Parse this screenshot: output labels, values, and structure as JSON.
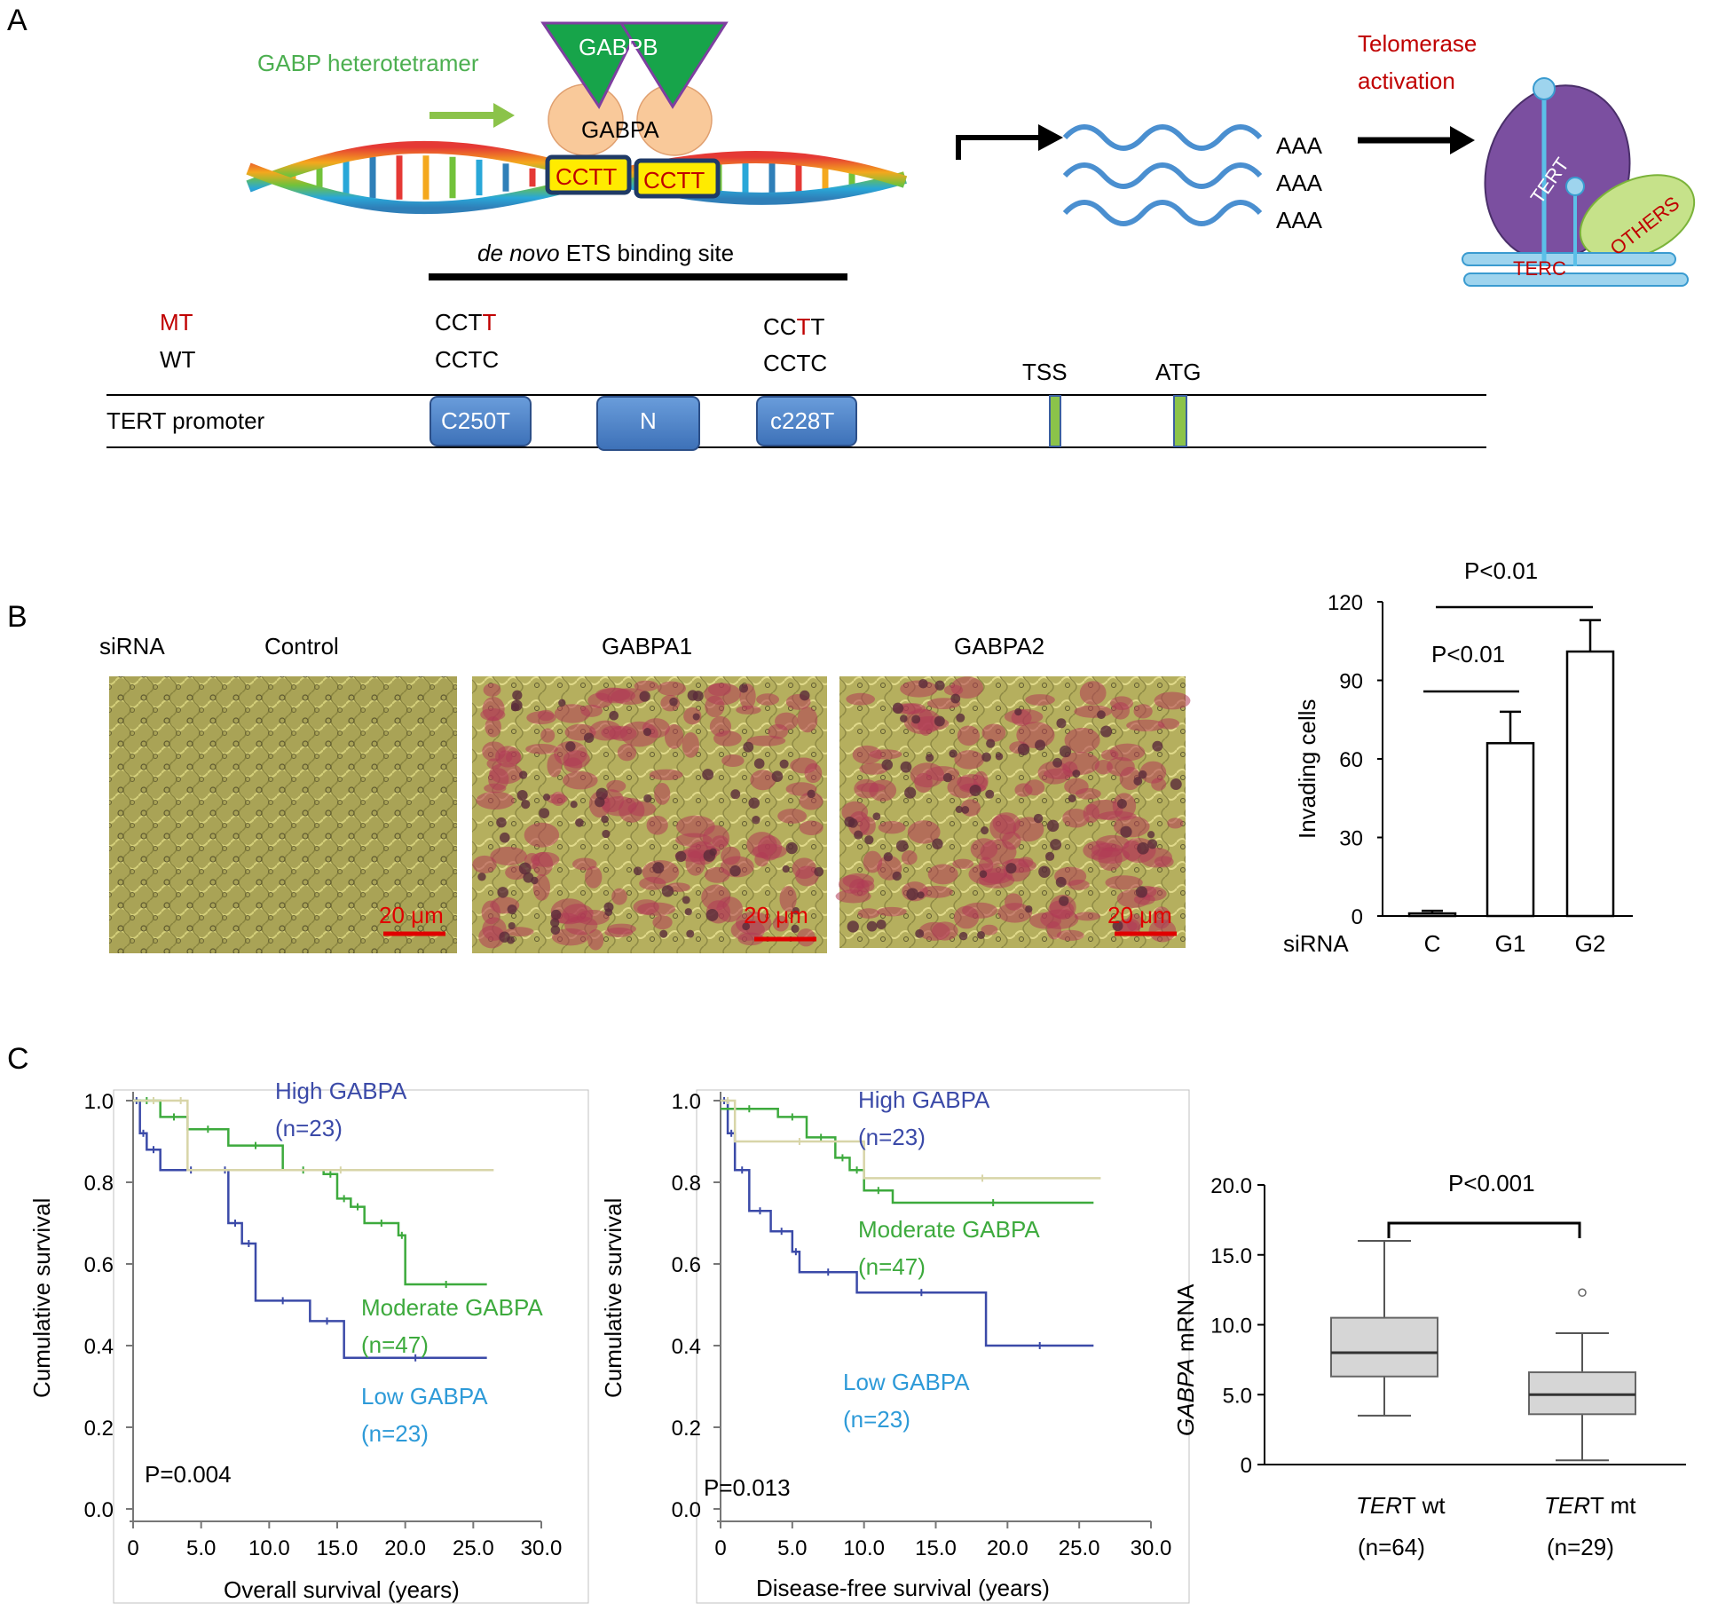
{
  "panels": {
    "a": "A",
    "b": "B",
    "c": "C"
  },
  "colors": {
    "red": "#c00000",
    "green": "#4caf50",
    "purple": "#7b4fa0",
    "blue_box": "#4a80c8",
    "dna_green": "#72c23a",
    "high": "#3b4aa8",
    "moderate": "#3daa3d",
    "low": "#2d9ad8",
    "low_line": "#d8d5a8"
  },
  "panel_a": {
    "heterotetramer": "GABP heterotetramer",
    "gabpb": "GABPB",
    "gabpa": "GABPA",
    "cctt_1": "CCTT",
    "cctt_2": "CCTT",
    "binding_site_italic": "de novo",
    "binding_site_rest": " ETS binding site",
    "polya": [
      "AAA",
      "AAA",
      "AAA"
    ],
    "telomerase_1": "Telomerase",
    "telomerase_2": "activation",
    "tert": "TERT",
    "others": "OTHERS",
    "terc": "TERC",
    "mt": "MT",
    "wt": "WT",
    "seq_250_mt_a": "CCT",
    "seq_250_mt_b": "T",
    "seq_250_wt": "CCTC",
    "seq_228_mt_a": "CC",
    "seq_228_mt_b": "T",
    "seq_228_mt_c": "T",
    "seq_228_wt": "CCTC",
    "tss": "TSS",
    "atg": "ATG",
    "promoter": "TERT promoter",
    "box_c250t": "C250T",
    "box_n": "N",
    "box_c228t": "c228T"
  },
  "panel_b": {
    "sirna": "siRNA",
    "control": "Control",
    "gabpa1": "GABPA1",
    "gabpa2": "GABPA2",
    "scalebar": "20 μm",
    "p1": "P<0.01",
    "p2": "P<0.01",
    "ylabel": "Invading cells",
    "xlabel": "siRNA"
  },
  "panel_c": {
    "os_ylabel": "Cumulative survival",
    "os_xlabel": "Overall survival (years)",
    "os_p": "P=0.004",
    "dfs_ylabel": "Cumulative survival",
    "dfs_xlabel": "Disease-free survival (years)",
    "dfs_p": "P=0.013",
    "high": "High GABPA",
    "high_n": "(n=23)",
    "moderate": "Moderate GABPA",
    "moderate_n": "(n=47)",
    "low": "Low GABPA",
    "low_n": "(n=23)",
    "box_ylabel_italic": "GABPA",
    "box_ylabel_rest": " mRNA",
    "box_p": "P<0.001",
    "wt_italic": "TER",
    "wt_rest": "T wt",
    "wt_n": "(n=64)",
    "mt_italic": "TER",
    "mt_rest": "T mt",
    "mt_n": "(n=29)"
  },
  "chart_data": [
    {
      "type": "bar",
      "categories": [
        "C",
        "G1",
        "G2"
      ],
      "values": [
        1,
        66,
        101
      ],
      "errors": [
        1,
        12,
        12
      ],
      "ylabel": "Invading cells",
      "xlabel": "siRNA",
      "ylim": [
        0,
        120
      ],
      "yticks": [
        0,
        30,
        60,
        90,
        120
      ],
      "annotations": [
        "P<0.01",
        "P<0.01"
      ]
    },
    {
      "type": "line",
      "kind": "kaplan-meier",
      "xlabel": "Overall survival (years)",
      "ylabel": "Cumulative survival",
      "xlim": [
        0,
        30
      ],
      "ylim": [
        0,
        1
      ],
      "xticks": [
        "0",
        "5.0",
        "10.0",
        "15.0",
        "20.0",
        "25.0",
        "30.0"
      ],
      "yticks": [
        "0.0",
        "0.2",
        "0.4",
        "0.6",
        "0.8",
        "1.0"
      ],
      "annotation": "P=0.004",
      "series": [
        {
          "name": "High GABPA (n=23)",
          "x": [
            0,
            0.5,
            1,
            2,
            6.5,
            7,
            8,
            9,
            13,
            15.5,
            26
          ],
          "y": [
            1.0,
            0.92,
            0.88,
            0.83,
            0.83,
            0.7,
            0.65,
            0.51,
            0.46,
            0.37,
            0.37
          ]
        },
        {
          "name": "Moderate GABPA (n=47)",
          "x": [
            0,
            2,
            4,
            7,
            11,
            14,
            15,
            16,
            17,
            19.5,
            20,
            26
          ],
          "y": [
            1.0,
            0.96,
            0.93,
            0.89,
            0.83,
            0.82,
            0.76,
            0.74,
            0.7,
            0.67,
            0.55,
            0.55
          ]
        },
        {
          "name": "Low GABPA (n=23)",
          "x": [
            0,
            3,
            4,
            26.5
          ],
          "y": [
            1.0,
            1.0,
            0.83,
            0.83
          ]
        }
      ]
    },
    {
      "type": "line",
      "kind": "kaplan-meier",
      "xlabel": "Disease-free survival (years)",
      "ylabel": "Cumulative survival",
      "xlim": [
        0,
        30
      ],
      "ylim": [
        0,
        1
      ],
      "xticks": [
        "0",
        "5.0",
        "10.0",
        "15.0",
        "20.0",
        "25.0",
        "30.0"
      ],
      "yticks": [
        "0.0",
        "0.2",
        "0.4",
        "0.6",
        "0.8",
        "1.0"
      ],
      "annotation": "P=0.013",
      "series": [
        {
          "name": "High GABPA (n=23)",
          "x": [
            0,
            0.5,
            1,
            2,
            3.5,
            5,
            5.5,
            9.5,
            18.5,
            26
          ],
          "y": [
            1.0,
            0.92,
            0.83,
            0.73,
            0.68,
            0.63,
            0.58,
            0.53,
            0.4,
            0.4
          ]
        },
        {
          "name": "Moderate GABPA (n=47)",
          "x": [
            0,
            4,
            6,
            8,
            9,
            10,
            12,
            26
          ],
          "y": [
            0.98,
            0.96,
            0.91,
            0.86,
            0.83,
            0.78,
            0.75,
            0.75
          ]
        },
        {
          "name": "Low GABPA (n=23)",
          "x": [
            0,
            1,
            10,
            26.5
          ],
          "y": [
            1.0,
            0.9,
            0.81,
            0.81
          ]
        }
      ]
    },
    {
      "type": "box",
      "ylabel": "GABPA mRNA",
      "ylim": [
        0,
        20
      ],
      "yticks": [
        "0",
        "5.0",
        "10.0",
        "15.0",
        "20.0"
      ],
      "annotation": "P<0.001",
      "categories": [
        "TERT wt (n=64)",
        "TERT mt (n=29)"
      ],
      "boxes": [
        {
          "min": 3.5,
          "q1": 6.3,
          "median": 8.0,
          "q3": 10.5,
          "max": 16.0,
          "outliers": []
        },
        {
          "min": 0.3,
          "q1": 3.6,
          "median": 5.0,
          "q3": 6.6,
          "max": 9.4,
          "outliers": [
            12.3
          ]
        }
      ]
    }
  ]
}
